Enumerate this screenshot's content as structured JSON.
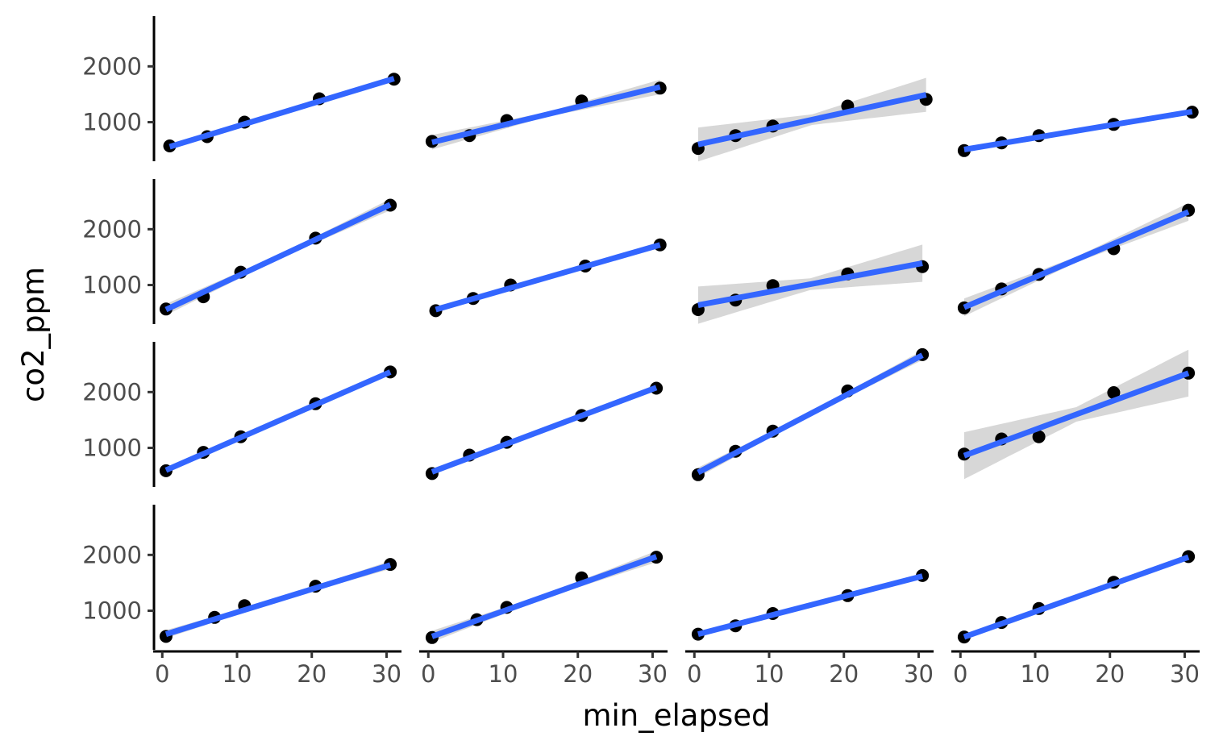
{
  "chart_data": {
    "type": "scatter",
    "layout": "facet-grid",
    "rows": 4,
    "cols": 4,
    "xlabel": "min_elapsed",
    "ylabel": "co2_ppm",
    "xlim": [
      -1,
      32
    ],
    "ylim": [
      300,
      2900
    ],
    "xticks": [
      0,
      10,
      20,
      30
    ],
    "yticks": [
      1000,
      2000
    ],
    "point_color": "#000000",
    "line_color": "#3366ff",
    "ribbon_color": "#bdbdbd",
    "panels": [
      {
        "x": [
          1,
          6,
          11,
          21,
          31
        ],
        "y": [
          575,
          740,
          1000,
          1420,
          1770
        ],
        "fit": [
          560,
          1780
        ],
        "se": 25
      },
      {
        "x": [
          0.5,
          5.5,
          10.5,
          20.5,
          31
        ],
        "y": [
          655,
          760,
          1030,
          1380,
          1610
        ],
        "fit": [
          640,
          1630
        ],
        "se": 90
      },
      {
        "x": [
          0.5,
          5.5,
          10.5,
          20.5,
          31
        ],
        "y": [
          530,
          760,
          930,
          1290,
          1410
        ],
        "fit": [
          600,
          1490
        ],
        "se": 210
      },
      {
        "x": [
          0.5,
          5.5,
          10.5,
          20.5,
          31
        ],
        "y": [
          490,
          630,
          760,
          960,
          1180
        ],
        "fit": [
          510,
          1190
        ],
        "se": 25
      },
      {
        "x": [
          0.5,
          5.5,
          10.5,
          20.5,
          30.5
        ],
        "y": [
          570,
          790,
          1230,
          1840,
          2430
        ],
        "fit": [
          560,
          2440
        ],
        "se": 70
      },
      {
        "x": [
          1,
          6,
          11,
          21,
          31
        ],
        "y": [
          540,
          760,
          1000,
          1340,
          1720
        ],
        "fit": [
          560,
          1720
        ],
        "se": 40
      },
      {
        "x": [
          0.5,
          5.5,
          10.5,
          20.5,
          30.5
        ],
        "y": [
          560,
          730,
          990,
          1200,
          1330
        ],
        "fit": [
          640,
          1390
        ],
        "se": 230
      },
      {
        "x": [
          0.5,
          5.5,
          10.5,
          20.5,
          30.5
        ],
        "y": [
          590,
          930,
          1190,
          1650,
          2340
        ],
        "fit": [
          600,
          2310
        ],
        "se": 110
      },
      {
        "x": [
          0.5,
          5.5,
          10.5,
          20.5,
          30.5
        ],
        "y": [
          590,
          920,
          1200,
          1790,
          2360
        ],
        "fit": [
          600,
          2360
        ],
        "se": 30
      },
      {
        "x": [
          0.5,
          5.5,
          10.5,
          20.5,
          30.5
        ],
        "y": [
          540,
          870,
          1100,
          1580,
          2070
        ],
        "fit": [
          570,
          2080
        ],
        "se": 40
      },
      {
        "x": [
          0.5,
          5.5,
          10.5,
          20.5,
          30.5
        ],
        "y": [
          520,
          940,
          1300,
          2020,
          2670
        ],
        "fit": [
          560,
          2660
        ],
        "se": 60
      },
      {
        "x": [
          0.5,
          5.5,
          10.5,
          20.5,
          30.5
        ],
        "y": [
          890,
          1160,
          1200,
          1990,
          2340
        ],
        "fit": [
          860,
          2340
        ],
        "se": 290
      },
      {
        "x": [
          0.5,
          7,
          11,
          20.5,
          30.5
        ],
        "y": [
          540,
          880,
          1090,
          1440,
          1830
        ],
        "fit": [
          580,
          1820
        ],
        "se": 50
      },
      {
        "x": [
          0.5,
          6.5,
          10.5,
          20.5,
          30.5
        ],
        "y": [
          520,
          840,
          1060,
          1590,
          1960
        ],
        "fit": [
          540,
          1970
        ],
        "se": 70
      },
      {
        "x": [
          0.5,
          5.5,
          10.5,
          20.5,
          30.5
        ],
        "y": [
          580,
          730,
          950,
          1270,
          1630
        ],
        "fit": [
          580,
          1620
        ],
        "se": 30
      },
      {
        "x": [
          0.5,
          5.5,
          10.5,
          20.5,
          30.5
        ],
        "y": [
          530,
          790,
          1040,
          1510,
          1970
        ],
        "fit": [
          530,
          1960
        ],
        "se": 30
      }
    ]
  }
}
